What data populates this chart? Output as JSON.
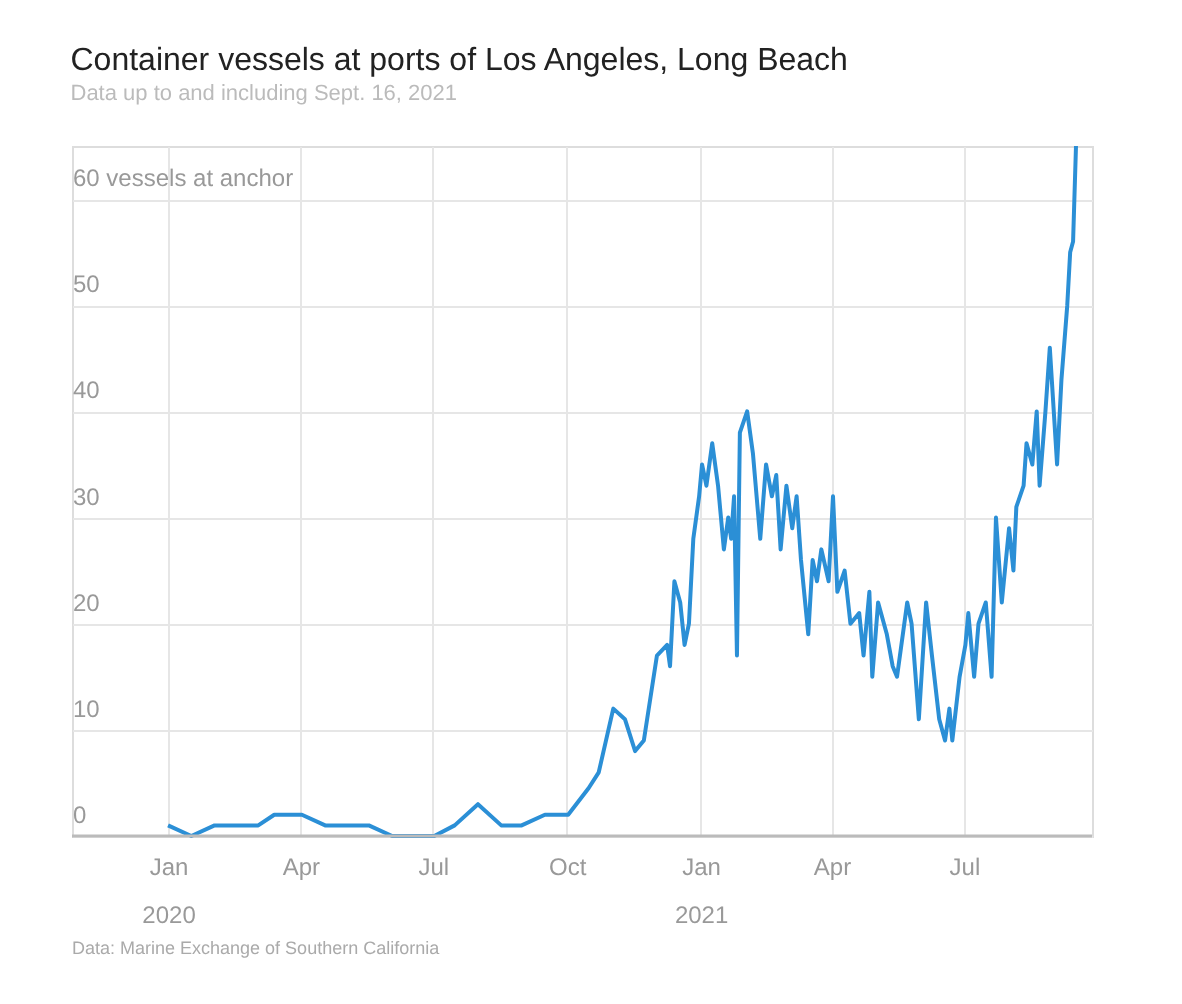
{
  "chart_data": {
    "type": "line",
    "title": "Container vessels at ports of Los Angeles, Long Beach",
    "subtitle": "Data up to and including Sept. 16, 2021",
    "annotations": [
      "Data: Marine Exchange of Southern California"
    ],
    "x": [
      "2020-01-01",
      "2020-01-17",
      "2020-02-02",
      "2020-03-03",
      "2020-03-14",
      "2020-04-02",
      "2020-04-18",
      "2020-05-18",
      "2020-06-03",
      "2020-07-02",
      "2020-07-16",
      "2020-08-01",
      "2020-08-17",
      "2020-08-31",
      "2020-09-16",
      "2020-10-02",
      "2020-10-16",
      "2020-10-23",
      "2020-11-02",
      "2020-11-10",
      "2020-11-17",
      "2020-11-23",
      "2020-12-02",
      "2020-12-09",
      "2020-12-11",
      "2020-12-14",
      "2020-12-18",
      "2020-12-21",
      "2020-12-24",
      "2020-12-27",
      "2020-12-31",
      "2021-01-02",
      "2021-01-05",
      "2021-01-09",
      "2021-01-13",
      "2021-01-17",
      "2021-01-20",
      "2021-01-22",
      "2021-01-24",
      "2021-01-26",
      "2021-01-28",
      "2021-02-02",
      "2021-02-06",
      "2021-02-11",
      "2021-02-15",
      "2021-02-19",
      "2021-02-22",
      "2021-02-25",
      "2021-03-01",
      "2021-03-05",
      "2021-03-08",
      "2021-03-11",
      "2021-03-16",
      "2021-03-19",
      "2021-03-22",
      "2021-03-25",
      "2021-03-30",
      "2021-04-02",
      "2021-04-05",
      "2021-04-10",
      "2021-04-14",
      "2021-04-20",
      "2021-04-23",
      "2021-04-27",
      "2021-04-29",
      "2021-05-03",
      "2021-05-09",
      "2021-05-13",
      "2021-05-16",
      "2021-05-23",
      "2021-05-26",
      "2021-05-31",
      "2021-06-05",
      "2021-06-09",
      "2021-06-14",
      "2021-06-18",
      "2021-06-21",
      "2021-06-23",
      "2021-06-28",
      "2021-07-02",
      "2021-07-04",
      "2021-07-08",
      "2021-07-11",
      "2021-07-16",
      "2021-07-20",
      "2021-07-23",
      "2021-07-27",
      "2021-08-01",
      "2021-08-04",
      "2021-08-06",
      "2021-08-11",
      "2021-08-13",
      "2021-08-17",
      "2021-08-20",
      "2021-08-22",
      "2021-08-26",
      "2021-08-29",
      "2021-09-03",
      "2021-09-06",
      "2021-09-10",
      "2021-09-12",
      "2021-09-14",
      "2021-09-16"
    ],
    "series": [
      {
        "color": "#2b8fd6",
        "values": [
          1,
          0,
          1,
          1,
          2,
          2,
          1,
          1,
          0,
          0,
          1,
          3,
          1,
          1,
          2,
          2,
          4.5,
          6,
          12,
          11,
          8,
          9,
          17,
          18,
          16,
          24,
          22,
          18,
          20,
          28,
          32,
          35,
          33,
          37,
          33,
          27,
          30,
          28,
          32,
          17,
          38,
          40,
          36,
          28,
          35,
          32,
          34,
          27,
          33,
          29,
          32,
          26,
          19,
          26,
          24,
          27,
          24,
          32,
          23,
          25,
          20,
          21,
          17,
          23,
          15,
          22,
          19,
          16,
          15,
          22,
          20,
          11,
          22,
          17,
          11,
          9,
          12,
          9,
          15,
          18,
          21,
          15,
          20,
          22,
          15,
          30,
          22,
          29,
          25,
          31,
          33,
          37,
          35,
          40,
          33,
          40,
          46,
          35,
          43,
          50,
          55,
          56,
          65
        ]
      }
    ],
    "xlim": [
      "2019-10-27",
      "2021-09-27"
    ],
    "xticks": [
      {
        "value": "2020-01-01",
        "label": "Jan 2020"
      },
      {
        "value": "2020-04-01",
        "label": "Apr"
      },
      {
        "value": "2020-07-01",
        "label": "Jul"
      },
      {
        "value": "2020-10-01",
        "label": "Oct"
      },
      {
        "value": "2021-01-01",
        "label": "Jan 2021"
      },
      {
        "value": "2021-04-01",
        "label": "Apr"
      },
      {
        "value": "2021-07-01",
        "label": "Jul"
      }
    ],
    "ylim": [
      0,
      65
    ],
    "yticks": [
      0,
      10,
      20,
      30,
      40,
      50,
      {
        "value": 60,
        "label": "60 vessels at anchor"
      }
    ],
    "grid": true,
    "marker": "none",
    "line_style": "solid"
  }
}
